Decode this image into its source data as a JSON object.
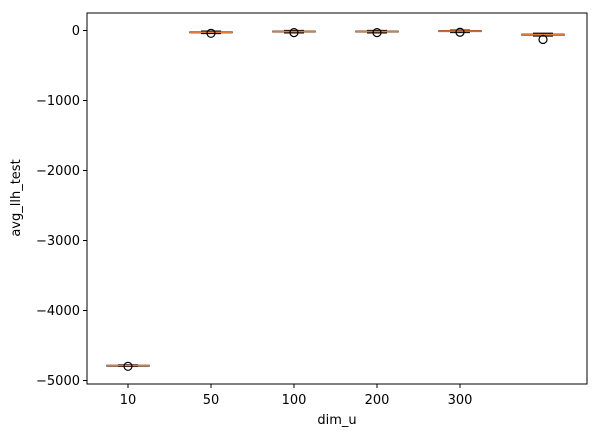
{
  "chart_data": {
    "type": "boxplot",
    "title": "",
    "xlabel": "dim_u",
    "ylabel": "avg_llh_test",
    "ylim": [
      -5050,
      250
    ],
    "yticks": [
      0,
      -1000,
      -2000,
      -3000,
      -4000,
      -5000
    ],
    "ytick_labels": [
      "0",
      "−1000",
      "−2000",
      "−3000",
      "−4000",
      "−5000"
    ],
    "xtick_labels": [
      "10",
      "50",
      "100",
      "200",
      "300"
    ],
    "grid": false,
    "legend": "none",
    "box_color": "#000000",
    "median_color": "#e07b39",
    "boxes": [
      {
        "category": "10",
        "whislo": -4800,
        "q1": -4790,
        "median": -4786,
        "q3": -4782,
        "whishi": -4775,
        "fliers": [
          -4797
        ]
      },
      {
        "category": "50",
        "whislo": -45,
        "q1": -32,
        "median": -25,
        "q3": -18,
        "whishi": -8,
        "fliers": [
          -40
        ]
      },
      {
        "category": "100",
        "whislo": -35,
        "q1": -22,
        "median": -15,
        "q3": -8,
        "whishi": 2,
        "fliers": [
          -30
        ]
      },
      {
        "category": "200",
        "whislo": -35,
        "q1": -22,
        "median": -15,
        "q3": -8,
        "whishi": 2,
        "fliers": [
          -30
        ]
      },
      {
        "category": "300",
        "whislo": -30,
        "q1": -15,
        "median": -8,
        "q3": -1,
        "whishi": 8,
        "fliers": [
          -25
        ]
      },
      {
        "category": "",
        "whislo": -80,
        "q1": -68,
        "median": -60,
        "q3": -52,
        "whishi": -38,
        "fliers": [
          -128
        ]
      }
    ]
  }
}
